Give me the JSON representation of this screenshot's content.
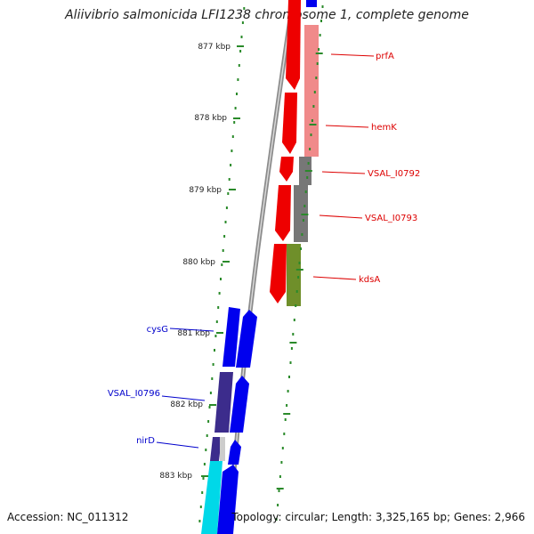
{
  "title": "Aliivibrio salmonicida LFI1238 chromosome 1, complete genome",
  "footer": {
    "accession": "Accession: NC_011312",
    "summary": "Topology: circular; Length: 3,325,165 bp; Genes: 2,966"
  },
  "colors": {
    "forward_gene": "#ee0000",
    "forward_gene_light": "#f08a8a",
    "reverse_gene": "#0000ee",
    "reverse_gene_dark": "#3c2c8c",
    "reverse_gene_cyan": "#00d8e8",
    "gray_gene": "#777777",
    "olive_gene": "#6f8f2a",
    "backbone": "#8c8c8c",
    "tick": "#2a8a2a",
    "label_forward": "#dd0000",
    "label_reverse": "#0000cc"
  },
  "scale_ticks": [
    "877 kbp",
    "878 kbp",
    "879 kbp",
    "880 kbp",
    "881 kbp",
    "882 kbp",
    "883 kbp"
  ],
  "gene_labels": {
    "forward": [
      "prfA",
      "hemK",
      "VSAL_I0792",
      "VSAL_I0793",
      "kdsA"
    ],
    "reverse": [
      "cysG",
      "VSAL_I0796",
      "nirD"
    ]
  }
}
